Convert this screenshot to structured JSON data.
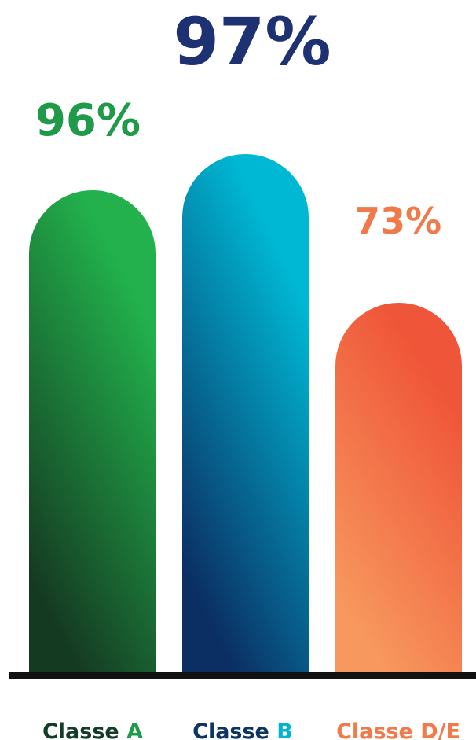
{
  "chart_data": {
    "type": "bar",
    "title": "",
    "xlabel": "",
    "ylabel": "",
    "categories": [
      "Classe A",
      "Classe B",
      "Classe D/E"
    ],
    "values": [
      96,
      97,
      73
    ],
    "value_labels": [
      "96%",
      "97%",
      "73%"
    ],
    "category_label_parts": [
      {
        "dark": "Classe",
        "accent": "A"
      },
      {
        "dark": "Classe",
        "accent": "B"
      },
      {
        "dark": "Classe",
        "accent": "D/E"
      }
    ],
    "grid": false,
    "legend": "none",
    "colors": [
      {
        "top": "#22b14c",
        "bottom": "#153a22",
        "label": "#1e9a48",
        "dark_label": "#133d27"
      },
      {
        "top": "#00b8d4",
        "bottom": "#0b2e63",
        "label": "#00b4d2",
        "dark_label": "#0d3563"
      },
      {
        "top": "#ef5538",
        "bottom": "#f7985e",
        "label": "#f07a4a",
        "dark_label": "#f07a4a"
      }
    ],
    "highlight_label_color": "#1e3173",
    "baseline_color": "#111111"
  }
}
